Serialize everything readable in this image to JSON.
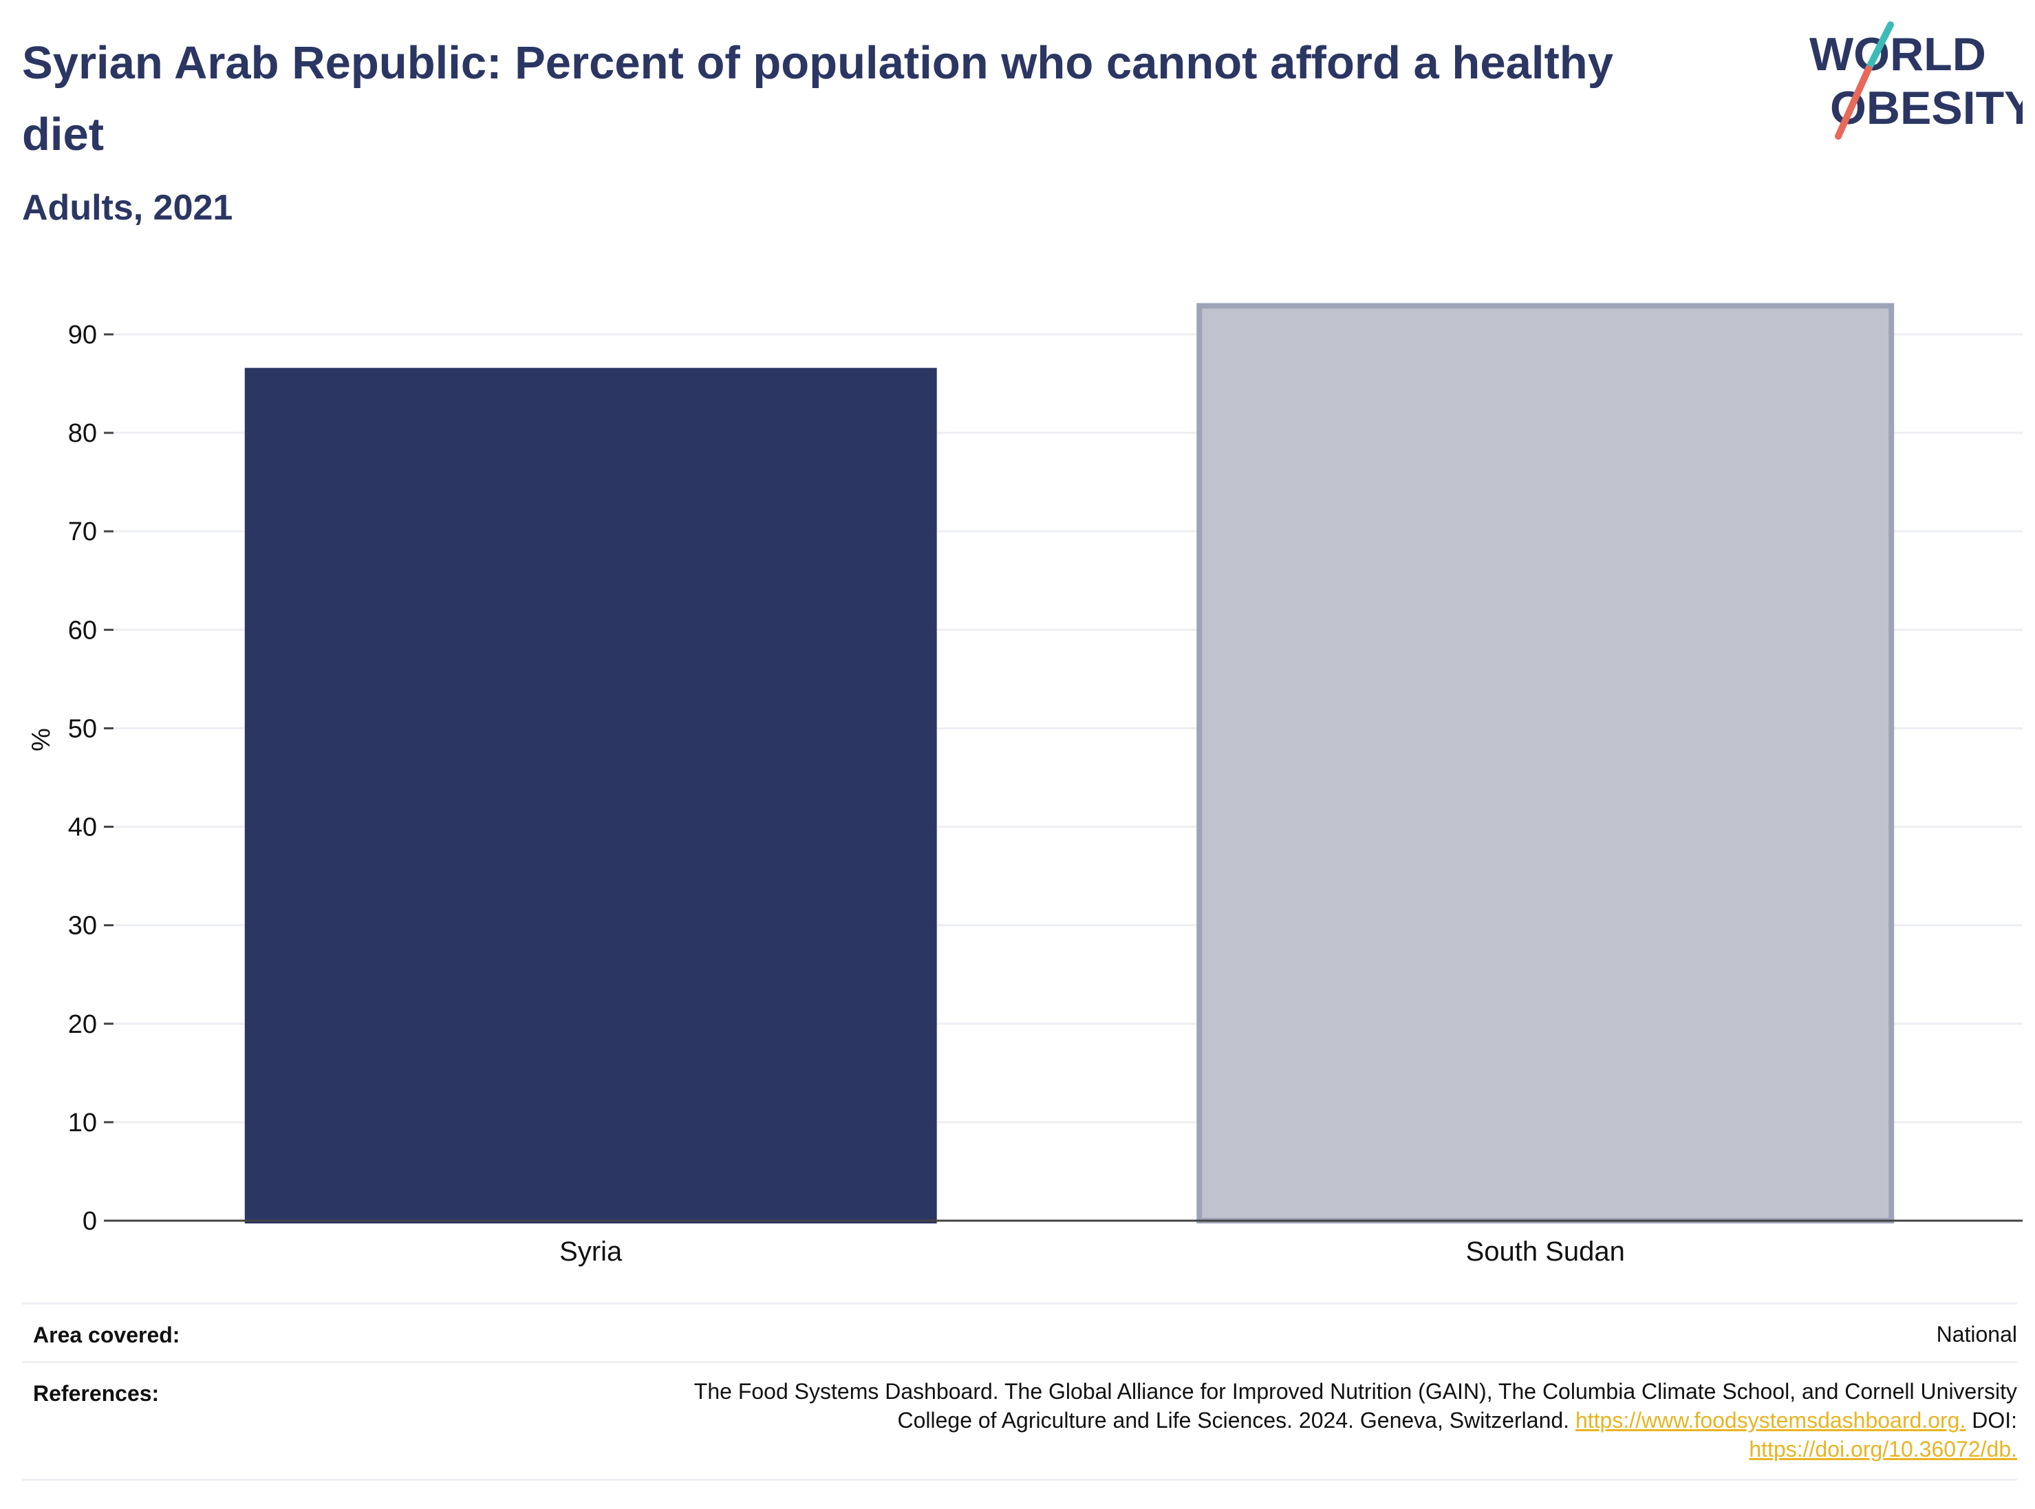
{
  "header": {
    "title": "Syrian Arab Republic: Percent of population who cannot afford a healthy diet",
    "subtitle": "Adults, 2021"
  },
  "logo": {
    "line1": "WORLD",
    "line2": "OBESITY",
    "colors": {
      "text": "#2b3663",
      "slash_top": "#3cbcb8",
      "slash_bottom": "#e8685a"
    }
  },
  "chart_data": {
    "type": "bar",
    "categories": [
      "Syria",
      "South Sudan"
    ],
    "values": [
      86.6,
      92.9
    ],
    "ylabel": "%",
    "ylim": [
      0,
      93
    ],
    "yticks": [
      0,
      10,
      20,
      30,
      40,
      50,
      60,
      70,
      80,
      90
    ],
    "grid": true,
    "colors": {
      "highlight": "#2b3663",
      "comparison_fill": "#bfc3ce",
      "comparison_border": "#9ea4b8",
      "grid": "#eceef2",
      "axis": "#444444"
    }
  },
  "footer": {
    "area_label": "Area covered:",
    "area_value": "National",
    "references_label": "References:",
    "references_line1": "The Food Systems Dashboard. The Global Alliance for Improved Nutrition (GAIN), The Columbia Climate School, and Cornell University",
    "references_line2": "College of Agriculture and Life Sciences. 2024. Geneva, Switzerland.",
    "references_link1": "https://www.foodsystemsdashboard.org.",
    "references_doi_label": "DOI:",
    "references_link2": "https://doi.org/10.36072/db."
  }
}
